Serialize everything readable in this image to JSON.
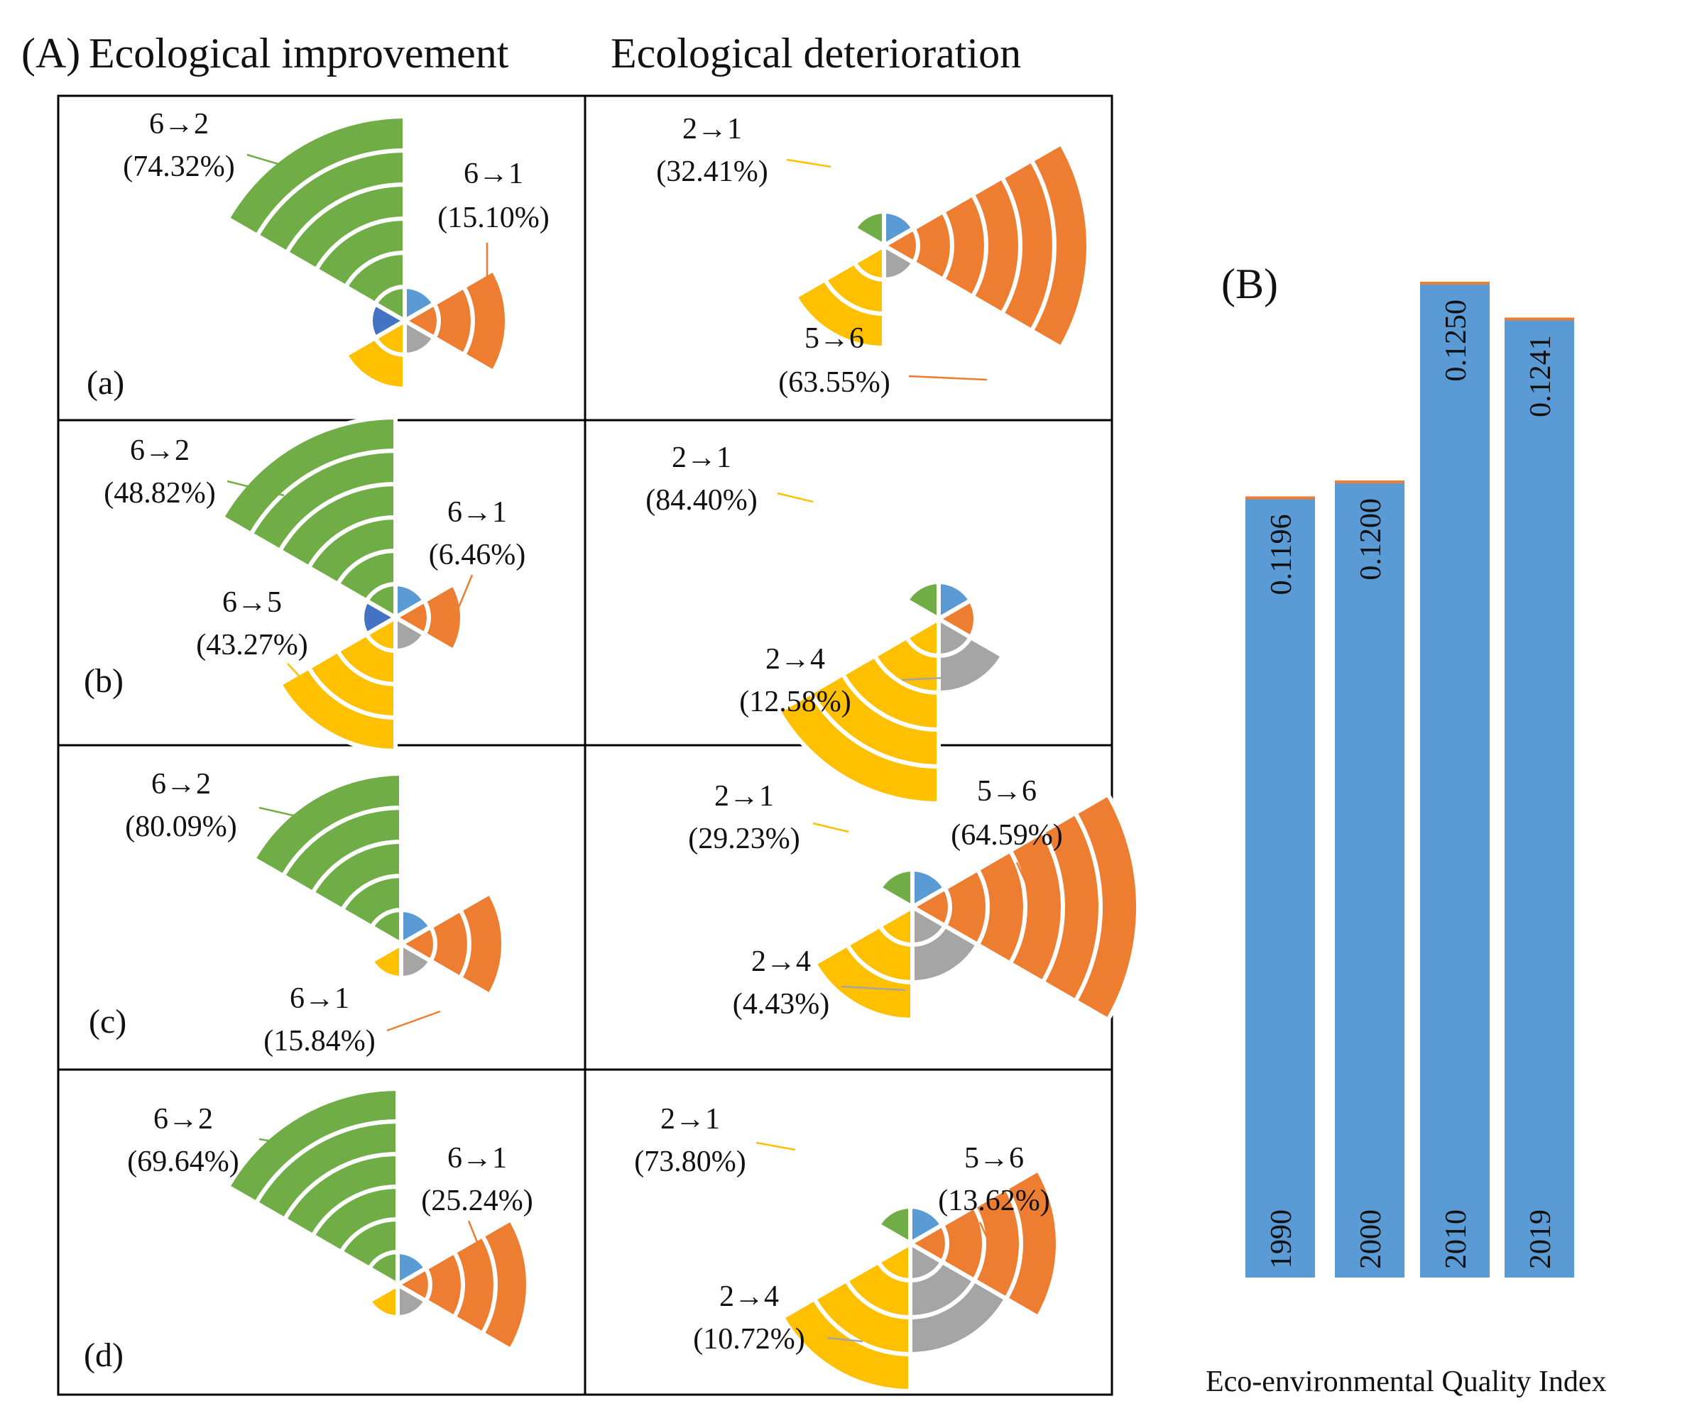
{
  "panelA": {
    "label": "(A)",
    "column_titles": [
      "Ecological improvement",
      "Ecological deterioration"
    ]
  },
  "panelB": {
    "label": "(B)",
    "xlabel": "Eco-environmental Quality Index"
  },
  "colors": {
    "blue": "#5b9bd5",
    "orange": "#ed7d31",
    "gray": "#a5a5a5",
    "yellow": "#ffc000",
    "dkblue": "#4472c4",
    "green": "#70ad47",
    "bar_blue": "#5b9bd5",
    "bar_cap": "#ed7d31"
  },
  "chart_data": [
    {
      "type": "radial-bar",
      "title": "Ecological improvement",
      "rows": [
        {
          "label": "(a)",
          "annotations": [
            {
              "text1": "6→2",
              "text2": "(74.32%)",
              "series": "green"
            },
            {
              "text1": "6→1",
              "text2": "(15.10%)",
              "series": "orange"
            }
          ]
        },
        {
          "label": "(b)",
          "annotations": [
            {
              "text1": "6→2",
              "text2": "(48.82%)",
              "series": "green"
            },
            {
              "text1": "6→1",
              "text2": "(6.46%)",
              "series": "orange"
            },
            {
              "text1": "6→5",
              "text2": "(43.27%)",
              "series": "yellow"
            }
          ]
        },
        {
          "label": "(c)",
          "annotations": [
            {
              "text1": "6→2",
              "text2": "(80.09%)",
              "series": "green"
            },
            {
              "text1": "6→1",
              "text2": "(15.84%)",
              "series": "orange"
            }
          ]
        },
        {
          "label": "(d)",
          "annotations": [
            {
              "text1": "6→2",
              "text2": "(69.64%)",
              "series": "green"
            },
            {
              "text1": "6→1",
              "text2": "(25.24%)",
              "series": "orange"
            }
          ]
        }
      ]
    },
    {
      "type": "radial-bar",
      "title": "Ecological deterioration",
      "rows": [
        {
          "annotations": [
            {
              "text1": "2→1",
              "text2": "(32.41%)",
              "series": "yellow"
            },
            {
              "text1": "5→6",
              "text2": "(63.55%)",
              "series": "orange"
            }
          ]
        },
        {
          "annotations": [
            {
              "text1": "2→1",
              "text2": "(84.40%)",
              "series": "yellow"
            },
            {
              "text1": "2→4",
              "text2": "(12.58%)",
              "series": "gray"
            }
          ]
        },
        {
          "annotations": [
            {
              "text1": "2→1",
              "text2": "(29.23%)",
              "series": "yellow"
            },
            {
              "text1": "5→6",
              "text2": "(64.59%)",
              "series": "orange"
            },
            {
              "text1": "2→4",
              "text2": "(4.43%)",
              "series": "gray"
            }
          ]
        },
        {
          "annotations": [
            {
              "text1": "2→1",
              "text2": "(73.80%)",
              "series": "yellow"
            },
            {
              "text1": "5→6",
              "text2": "(13.62%)",
              "series": "orange"
            },
            {
              "text1": "2→4",
              "text2": "(10.72%)",
              "series": "gray"
            }
          ]
        }
      ]
    },
    {
      "type": "bar",
      "categories": [
        "1990",
        "2000",
        "2010",
        "2019"
      ],
      "values": [
        0.1196,
        0.12,
        0.125,
        0.1241
      ],
      "value_labels": [
        "0.1196",
        "0.1200",
        "0.1250",
        "0.1241"
      ],
      "xlabel": "Eco-environmental Quality Index",
      "ylim": [
        0.1,
        0.1255
      ],
      "grid": false,
      "legend": "none"
    }
  ]
}
